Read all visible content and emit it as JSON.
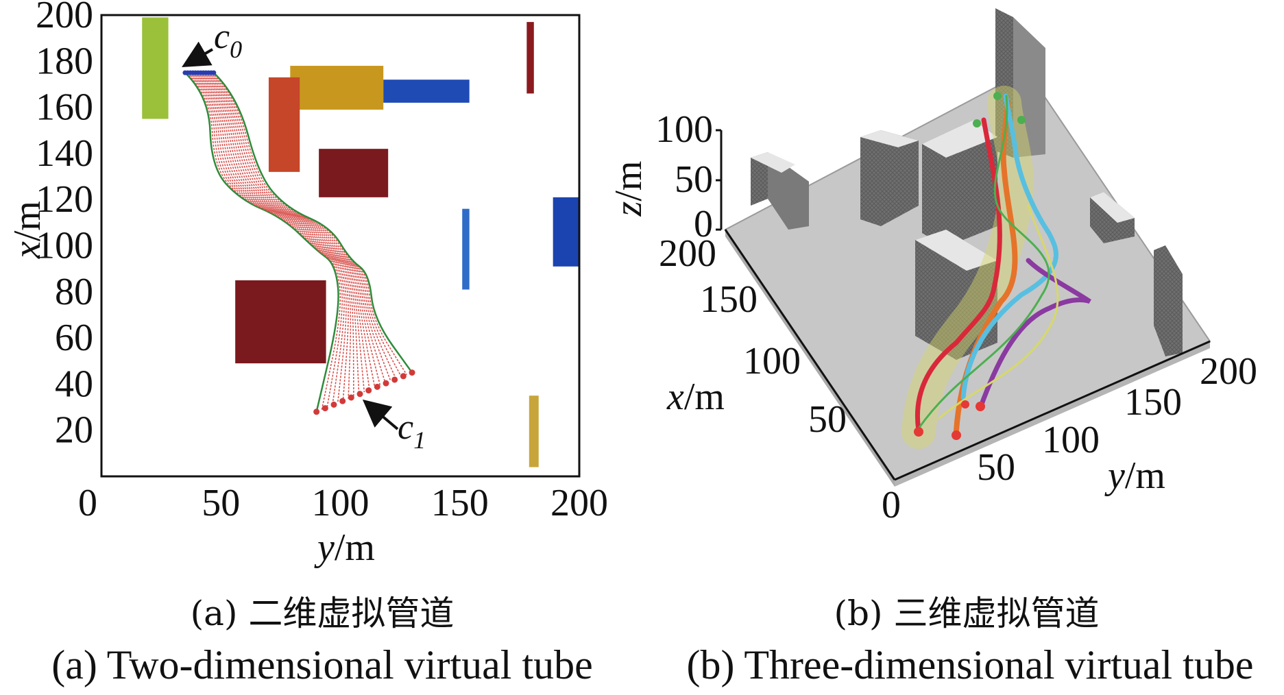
{
  "chart_data": [
    {
      "type": "scatter",
      "xlabel_var": "y",
      "xlabel_unit": "/m",
      "ylabel_var": "x",
      "ylabel_unit": "/m",
      "xlim": [
        0,
        200
      ],
      "ylim": [
        0,
        200
      ],
      "xticks": [
        "0",
        "50",
        "100",
        "150",
        "200"
      ],
      "yticks": [
        "20",
        "40",
        "60",
        "80",
        "100",
        "120",
        "140",
        "160",
        "180",
        "200"
      ],
      "grid": false,
      "obstacles": [
        {
          "y0": 17,
          "y1": 28,
          "x0": 155,
          "x1": 199,
          "color": "#9bc03a"
        },
        {
          "y0": 79,
          "y1": 118,
          "x0": 159,
          "x1": 178,
          "color": "#c8981e"
        },
        {
          "y0": 70,
          "y1": 83,
          "x0": 132,
          "x1": 173,
          "color": "#c6462a"
        },
        {
          "y0": 118,
          "y1": 154,
          "x0": 162,
          "x1": 172,
          "color": "#1f4bb5"
        },
        {
          "y0": 91,
          "y1": 120,
          "x0": 121,
          "x1": 142,
          "color": "#7a1a1e"
        },
        {
          "y0": 178,
          "y1": 181,
          "x0": 166,
          "x1": 197,
          "color": "#8b1a1e"
        },
        {
          "y0": 189,
          "y1": 202,
          "x0": 91,
          "x1": 121,
          "color": "#1c44b0"
        },
        {
          "y0": 151,
          "y1": 154,
          "x0": 81,
          "x1": 116,
          "color": "#2f6cc8"
        },
        {
          "y0": 56,
          "y1": 94,
          "x0": 49,
          "x1": 85,
          "color": "#7a1a1e"
        },
        {
          "y0": 179,
          "y1": 183,
          "x0": 4,
          "x1": 35,
          "color": "#c8a53a"
        }
      ],
      "start_segment": {
        "y0": 35,
        "y1": 47,
        "x": 175
      },
      "end_segment": {
        "y0": 90,
        "y1": 130,
        "x0": 28,
        "x1": 45
      },
      "tube_boundary_color": "#2e8b3a",
      "trajectory_color": "#d9534f",
      "labels": {
        "c0": "c",
        "c0_sub": "0",
        "c1": "c",
        "c1_sub": "1"
      }
    },
    {
      "type": "3d-surface",
      "xlabel_var": "x",
      "xlabel_unit": "/m",
      "ylabel_var": "y",
      "ylabel_unit": "/m",
      "zlabel_var": "z",
      "zlabel_unit": "/m",
      "xticks": [
        "50",
        "100",
        "150",
        "200"
      ],
      "yticks": [
        "0",
        "50",
        "100",
        "150",
        "200"
      ],
      "zticks": [
        "0",
        "50",
        "100"
      ],
      "series_colors": [
        "#d9283a",
        "#e6732a",
        "#58bfe0",
        "#8a3aa0",
        "#4caf50",
        "#d6d86a"
      ]
    }
  ],
  "captions": {
    "a_zh": "(a) 二维虚拟管道",
    "b_zh": "(b) 三维虚拟管道",
    "a_en": "(a) Two-dimensional virtual tube",
    "b_en": "(b) Three-dimensional virtual tube"
  }
}
